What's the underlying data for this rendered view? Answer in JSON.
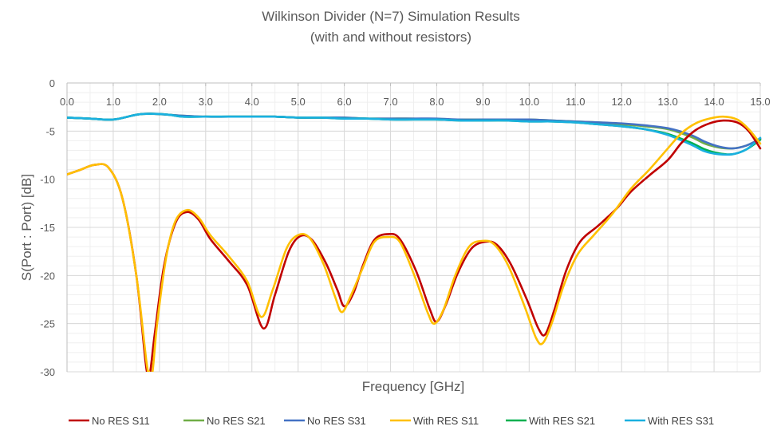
{
  "chart_data": {
    "type": "line",
    "title": "Wilkinson Divider (N=7) Simulation Results",
    "subtitle": "(with and without resistors)",
    "xlabel": "Frequency [GHz]",
    "ylabel": "S(Port : Port) [dB]",
    "xlim": [
      0,
      15
    ],
    "ylim": [
      -30,
      0
    ],
    "x_ticks": [
      "0.0",
      "1.0",
      "2.0",
      "3.0",
      "4.0",
      "5.0",
      "6.0",
      "7.0",
      "8.0",
      "9.0",
      "10.0",
      "11.0",
      "12.0",
      "13.0",
      "14.0",
      "15.0"
    ],
    "y_ticks": [
      "0",
      "-5",
      "-10",
      "-15",
      "-20",
      "-25",
      "-30"
    ],
    "grid": true,
    "x_axis_position": "top",
    "legend_position": "bottom",
    "series": [
      {
        "name": "No RES S11",
        "color": "#c00000",
        "points": [
          [
            0,
            -9.5
          ],
          [
            0.3,
            -9.0
          ],
          [
            0.6,
            -8.5
          ],
          [
            0.9,
            -8.8
          ],
          [
            1.2,
            -12
          ],
          [
            1.5,
            -20
          ],
          [
            1.7,
            -29
          ],
          [
            1.75,
            -30
          ],
          [
            1.8,
            -30
          ],
          [
            1.9,
            -26
          ],
          [
            2.1,
            -19
          ],
          [
            2.35,
            -14.5
          ],
          [
            2.6,
            -13.4
          ],
          [
            2.85,
            -14.2
          ],
          [
            3.1,
            -16.2
          ],
          [
            3.5,
            -18.5
          ],
          [
            3.9,
            -21
          ],
          [
            4.25,
            -25.5
          ],
          [
            4.5,
            -22
          ],
          [
            4.8,
            -17.5
          ],
          [
            5.05,
            -15.9
          ],
          [
            5.3,
            -16.3
          ],
          [
            5.6,
            -18.7
          ],
          [
            5.85,
            -21.5
          ],
          [
            6.0,
            -23.2
          ],
          [
            6.2,
            -21.8
          ],
          [
            6.4,
            -19
          ],
          [
            6.65,
            -16.3
          ],
          [
            6.95,
            -15.7
          ],
          [
            7.2,
            -16.2
          ],
          [
            7.55,
            -19.5
          ],
          [
            7.85,
            -23.5
          ],
          [
            8.0,
            -24.8
          ],
          [
            8.2,
            -23
          ],
          [
            8.45,
            -19.8
          ],
          [
            8.75,
            -17.2
          ],
          [
            9.05,
            -16.5
          ],
          [
            9.3,
            -16.8
          ],
          [
            9.6,
            -18.8
          ],
          [
            9.95,
            -22.5
          ],
          [
            10.2,
            -25.5
          ],
          [
            10.35,
            -26.1
          ],
          [
            10.55,
            -23.5
          ],
          [
            10.8,
            -19.5
          ],
          [
            11.1,
            -16.5
          ],
          [
            11.5,
            -14.8
          ],
          [
            11.9,
            -13
          ],
          [
            12.2,
            -11.3
          ],
          [
            12.6,
            -9.6
          ],
          [
            13.0,
            -8
          ],
          [
            13.3,
            -6.2
          ],
          [
            13.6,
            -4.9
          ],
          [
            13.9,
            -4.2
          ],
          [
            14.2,
            -3.9
          ],
          [
            14.5,
            -4.1
          ],
          [
            14.75,
            -5.0
          ],
          [
            15.0,
            -6.8
          ]
        ]
      },
      {
        "name": "No RES S21",
        "color": "#70ad47",
        "points": [
          [
            0,
            -3.6
          ],
          [
            0.5,
            -3.7
          ],
          [
            1.0,
            -3.8
          ],
          [
            1.5,
            -3.3
          ],
          [
            1.8,
            -3.2
          ],
          [
            2.2,
            -3.3
          ],
          [
            2.5,
            -3.4
          ],
          [
            3.0,
            -3.5
          ],
          [
            3.5,
            -3.5
          ],
          [
            4.0,
            -3.5
          ],
          [
            4.5,
            -3.5
          ],
          [
            5.0,
            -3.6
          ],
          [
            5.5,
            -3.6
          ],
          [
            6.0,
            -3.6
          ],
          [
            6.5,
            -3.7
          ],
          [
            7.0,
            -3.7
          ],
          [
            7.5,
            -3.7
          ],
          [
            8.0,
            -3.8
          ],
          [
            8.5,
            -3.8
          ],
          [
            9.0,
            -3.8
          ],
          [
            9.5,
            -3.8
          ],
          [
            10.0,
            -3.8
          ],
          [
            10.5,
            -3.9
          ],
          [
            11.0,
            -4.0
          ],
          [
            11.5,
            -4.1
          ],
          [
            12.0,
            -4.3
          ],
          [
            12.5,
            -4.5
          ],
          [
            13.0,
            -4.8
          ],
          [
            13.5,
            -5.6
          ],
          [
            13.8,
            -6.3
          ],
          [
            14.1,
            -6.7
          ],
          [
            14.4,
            -6.8
          ],
          [
            14.7,
            -6.5
          ],
          [
            15.0,
            -5.8
          ]
        ]
      },
      {
        "name": "No RES S31",
        "color": "#4472c4",
        "points": [
          [
            0,
            -3.6
          ],
          [
            0.5,
            -3.7
          ],
          [
            1.0,
            -3.8
          ],
          [
            1.5,
            -3.3
          ],
          [
            1.8,
            -3.2
          ],
          [
            2.2,
            -3.3
          ],
          [
            2.5,
            -3.4
          ],
          [
            3.0,
            -3.5
          ],
          [
            3.5,
            -3.5
          ],
          [
            4.0,
            -3.5
          ],
          [
            4.5,
            -3.5
          ],
          [
            5.0,
            -3.6
          ],
          [
            5.5,
            -3.6
          ],
          [
            6.0,
            -3.6
          ],
          [
            6.5,
            -3.7
          ],
          [
            7.0,
            -3.7
          ],
          [
            7.5,
            -3.7
          ],
          [
            8.0,
            -3.7
          ],
          [
            8.5,
            -3.8
          ],
          [
            9.0,
            -3.8
          ],
          [
            9.5,
            -3.8
          ],
          [
            10.0,
            -3.8
          ],
          [
            10.5,
            -3.9
          ],
          [
            11.0,
            -4.0
          ],
          [
            11.5,
            -4.1
          ],
          [
            12.0,
            -4.2
          ],
          [
            12.5,
            -4.4
          ],
          [
            13.0,
            -4.7
          ],
          [
            13.5,
            -5.4
          ],
          [
            13.8,
            -6.1
          ],
          [
            14.1,
            -6.6
          ],
          [
            14.4,
            -6.8
          ],
          [
            14.7,
            -6.5
          ],
          [
            15.0,
            -5.8
          ]
        ]
      },
      {
        "name": "With RES S11",
        "color": "#ffc000",
        "points": [
          [
            0,
            -9.5
          ],
          [
            0.3,
            -9.0
          ],
          [
            0.6,
            -8.5
          ],
          [
            0.9,
            -8.8
          ],
          [
            1.2,
            -12
          ],
          [
            1.5,
            -20
          ],
          [
            1.72,
            -29
          ],
          [
            1.78,
            -30
          ],
          [
            1.85,
            -30
          ],
          [
            1.95,
            -25
          ],
          [
            2.15,
            -18
          ],
          [
            2.35,
            -14.3
          ],
          [
            2.6,
            -13.2
          ],
          [
            2.85,
            -14
          ],
          [
            3.1,
            -15.8
          ],
          [
            3.5,
            -18
          ],
          [
            3.9,
            -20.6
          ],
          [
            4.2,
            -24.3
          ],
          [
            4.45,
            -21.5
          ],
          [
            4.75,
            -17.2
          ],
          [
            5.0,
            -15.8
          ],
          [
            5.25,
            -16.1
          ],
          [
            5.55,
            -18.8
          ],
          [
            5.8,
            -22.2
          ],
          [
            5.95,
            -23.8
          ],
          [
            6.15,
            -22
          ],
          [
            6.4,
            -19.2
          ],
          [
            6.65,
            -16.5
          ],
          [
            6.95,
            -16
          ],
          [
            7.2,
            -16.5
          ],
          [
            7.5,
            -19.8
          ],
          [
            7.8,
            -23.8
          ],
          [
            7.95,
            -25
          ],
          [
            8.15,
            -23.5
          ],
          [
            8.4,
            -20
          ],
          [
            8.7,
            -17
          ],
          [
            9.0,
            -16.4
          ],
          [
            9.25,
            -16.8
          ],
          [
            9.55,
            -19
          ],
          [
            9.9,
            -23.2
          ],
          [
            10.15,
            -26.5
          ],
          [
            10.3,
            -27
          ],
          [
            10.5,
            -24.8
          ],
          [
            10.75,
            -21
          ],
          [
            11.05,
            -17.8
          ],
          [
            11.4,
            -15.8
          ],
          [
            11.8,
            -13.6
          ],
          [
            12.2,
            -11
          ],
          [
            12.6,
            -9
          ],
          [
            13.0,
            -6.8
          ],
          [
            13.3,
            -5.2
          ],
          [
            13.6,
            -4.2
          ],
          [
            13.9,
            -3.7
          ],
          [
            14.2,
            -3.5
          ],
          [
            14.5,
            -3.8
          ],
          [
            14.75,
            -4.8
          ],
          [
            15.0,
            -6.3
          ]
        ]
      },
      {
        "name": "With RES S21",
        "color": "#00b050",
        "points": [
          [
            0,
            -3.6
          ],
          [
            0.5,
            -3.7
          ],
          [
            1.0,
            -3.8
          ],
          [
            1.5,
            -3.3
          ],
          [
            1.8,
            -3.2
          ],
          [
            2.2,
            -3.3
          ],
          [
            2.5,
            -3.5
          ],
          [
            3.0,
            -3.5
          ],
          [
            3.5,
            -3.5
          ],
          [
            4.0,
            -3.5
          ],
          [
            4.5,
            -3.5
          ],
          [
            5.0,
            -3.6
          ],
          [
            5.5,
            -3.6
          ],
          [
            6.0,
            -3.7
          ],
          [
            6.5,
            -3.7
          ],
          [
            7.0,
            -3.8
          ],
          [
            7.5,
            -3.8
          ],
          [
            8.0,
            -3.8
          ],
          [
            8.5,
            -3.9
          ],
          [
            9.0,
            -3.9
          ],
          [
            9.5,
            -3.9
          ],
          [
            10.0,
            -4.0
          ],
          [
            10.5,
            -4.0
          ],
          [
            11.0,
            -4.1
          ],
          [
            11.5,
            -4.3
          ],
          [
            12.0,
            -4.5
          ],
          [
            12.5,
            -4.8
          ],
          [
            13.0,
            -5.3
          ],
          [
            13.5,
            -6.2
          ],
          [
            13.8,
            -6.9
          ],
          [
            14.1,
            -7.3
          ],
          [
            14.4,
            -7.4
          ],
          [
            14.7,
            -6.9
          ],
          [
            15.0,
            -5.9
          ]
        ]
      },
      {
        "name": "With RES S31",
        "color": "#1ab0e0",
        "points": [
          [
            0,
            -3.6
          ],
          [
            0.5,
            -3.7
          ],
          [
            1.0,
            -3.8
          ],
          [
            1.5,
            -3.3
          ],
          [
            1.8,
            -3.2
          ],
          [
            2.2,
            -3.3
          ],
          [
            2.5,
            -3.5
          ],
          [
            3.0,
            -3.5
          ],
          [
            3.5,
            -3.5
          ],
          [
            4.0,
            -3.5
          ],
          [
            4.5,
            -3.5
          ],
          [
            5.0,
            -3.6
          ],
          [
            5.5,
            -3.6
          ],
          [
            6.0,
            -3.7
          ],
          [
            6.5,
            -3.7
          ],
          [
            7.0,
            -3.8
          ],
          [
            7.5,
            -3.8
          ],
          [
            8.0,
            -3.8
          ],
          [
            8.5,
            -3.9
          ],
          [
            9.0,
            -3.9
          ],
          [
            9.5,
            -3.9
          ],
          [
            10.0,
            -4.0
          ],
          [
            10.5,
            -4.0
          ],
          [
            11.0,
            -4.1
          ],
          [
            11.5,
            -4.3
          ],
          [
            12.0,
            -4.5
          ],
          [
            12.5,
            -4.8
          ],
          [
            13.0,
            -5.4
          ],
          [
            13.5,
            -6.4
          ],
          [
            13.8,
            -7.1
          ],
          [
            14.1,
            -7.4
          ],
          [
            14.4,
            -7.4
          ],
          [
            14.7,
            -6.9
          ],
          [
            15.0,
            -5.7
          ]
        ]
      }
    ]
  }
}
